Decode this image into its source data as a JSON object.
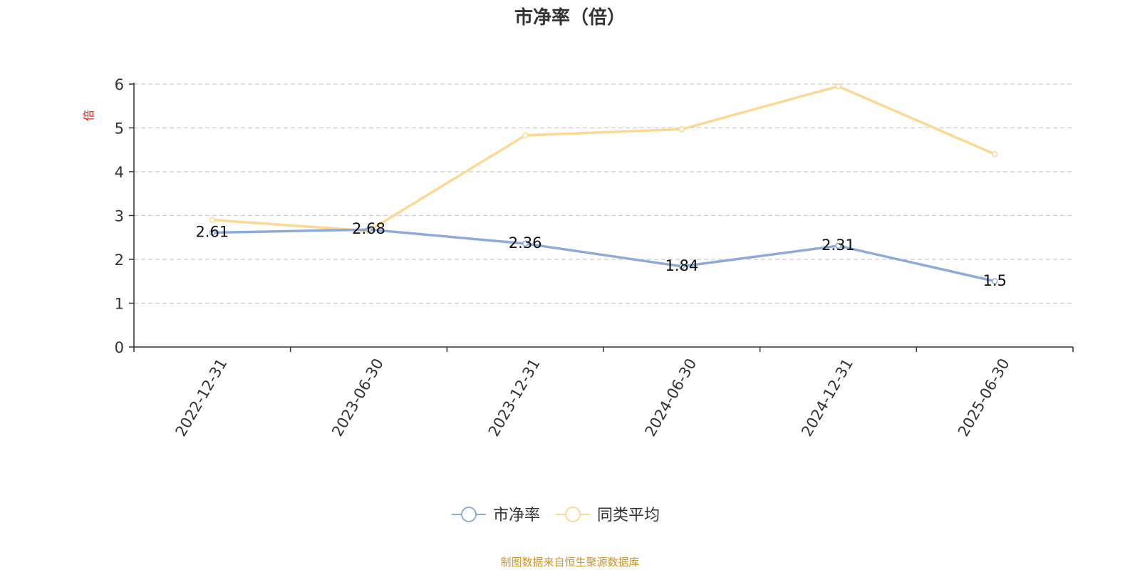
{
  "chart_data": {
    "type": "line",
    "title": "市净率（倍）",
    "ylabel": "倍",
    "xlabel": "",
    "categories": [
      "2022-12-31",
      "2023-06-30",
      "2023-12-31",
      "2024-06-30",
      "2024-12-31",
      "2025-06-30"
    ],
    "series": [
      {
        "name": "市净率",
        "values": [
          2.61,
          2.68,
          2.36,
          1.84,
          2.31,
          1.5
        ],
        "color": "#8eaad8",
        "labels": [
          "2.61",
          "2.68",
          "2.36",
          "1.84",
          "2.31",
          "1.5"
        ]
      },
      {
        "name": "同类平均",
        "values": [
          2.9,
          2.65,
          4.83,
          4.97,
          5.95,
          4.4
        ],
        "color": "#fbd995"
      }
    ],
    "ylim": [
      0,
      6
    ],
    "yticks": [
      "0",
      "1",
      "2",
      "3",
      "4",
      "5",
      "6"
    ],
    "grid": "horizontal-dashed",
    "legend_position": "bottom-center"
  },
  "footer": {
    "source": "制图数据来自恒生聚源数据库"
  },
  "colors": {
    "title": "#333333",
    "axis": "#333333",
    "ylabel": "#e02020",
    "grid": "#cccccc",
    "footer": "#c8952e"
  }
}
